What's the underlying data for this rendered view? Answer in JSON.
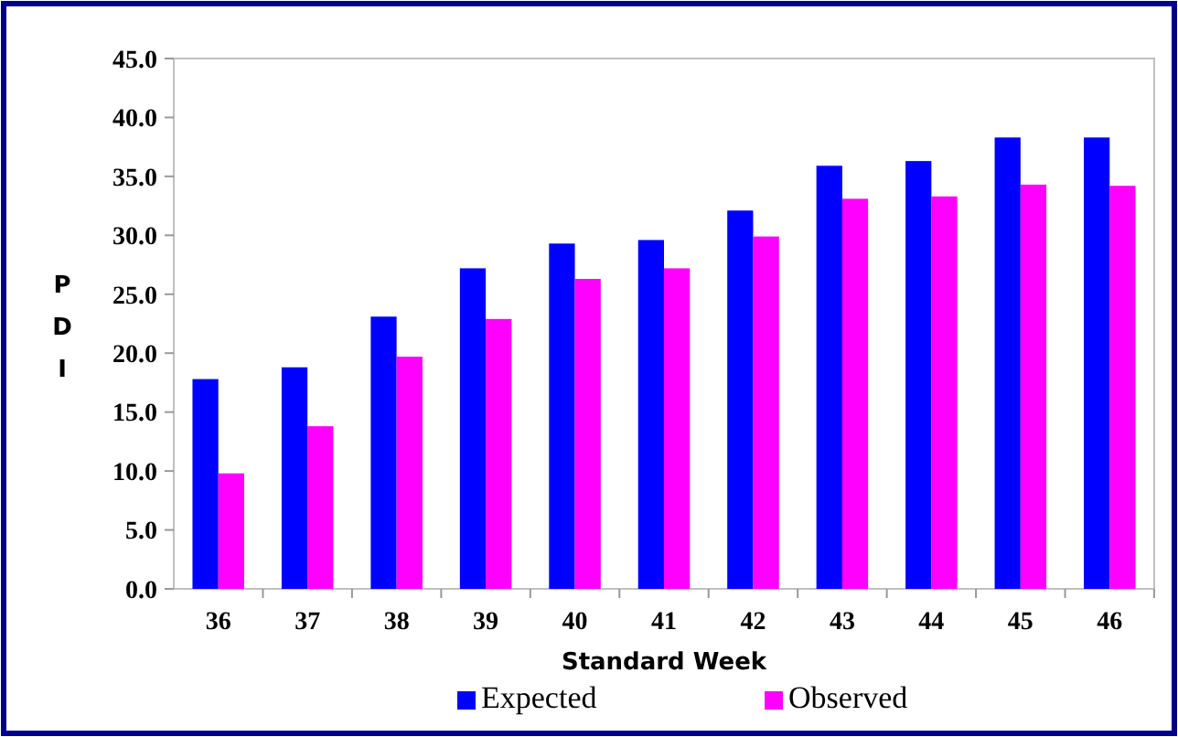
{
  "chart_data": {
    "type": "bar",
    "xlabel": "Standard Week",
    "ylabel": "PDI",
    "categories": [
      "36",
      "37",
      "38",
      "39",
      "40",
      "41",
      "42",
      "43",
      "44",
      "45",
      "46"
    ],
    "series": [
      {
        "name": "Expected",
        "color": "#0000ff",
        "values": [
          17.8,
          18.8,
          23.1,
          27.2,
          29.3,
          29.6,
          32.1,
          35.9,
          36.3,
          38.3,
          38.3
        ]
      },
      {
        "name": "Observed",
        "color": "#ff00ff",
        "values": [
          9.8,
          13.8,
          19.7,
          22.9,
          26.3,
          27.2,
          29.9,
          33.1,
          33.3,
          34.3,
          34.2
        ]
      }
    ],
    "ylim": [
      0,
      45
    ],
    "yticks": [
      {
        "value": 0,
        "label": "0.0"
      },
      {
        "value": 5,
        "label": "5.0"
      },
      {
        "value": 10,
        "label": "10.0"
      },
      {
        "value": 15,
        "label": "15.0"
      },
      {
        "value": 20,
        "label": "20.0"
      },
      {
        "value": 25,
        "label": "25.0"
      },
      {
        "value": 30,
        "label": "30.0"
      },
      {
        "value": 35,
        "label": "35.0"
      },
      {
        "value": 40,
        "label": "40.0"
      },
      {
        "value": 45,
        "label": "45.0"
      }
    ],
    "grid": false,
    "legend": "bottom"
  }
}
